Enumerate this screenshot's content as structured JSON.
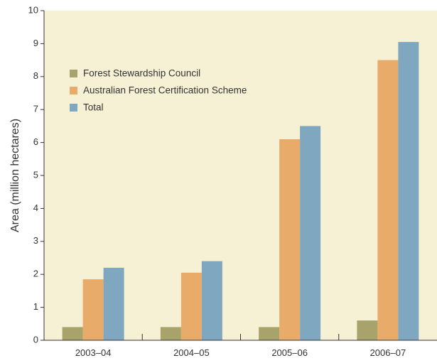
{
  "chart_data": {
    "type": "bar",
    "title": "",
    "xlabel": "",
    "ylabel": "Area (million hectares)",
    "ylim": [
      0,
      10
    ],
    "yticks": [
      0,
      1,
      2,
      3,
      4,
      5,
      6,
      7,
      8,
      9,
      10
    ],
    "categories": [
      "2003–04",
      "2004–05",
      "2005–06",
      "2006–07"
    ],
    "series": [
      {
        "name": "Forest Stewardship Council",
        "values": [
          0.4,
          0.4,
          0.4,
          0.6
        ],
        "color": "#a8a26b"
      },
      {
        "name": "Australian Forest Certification Scheme",
        "values": [
          1.85,
          2.05,
          6.1,
          8.5
        ],
        "color": "#e8ab6a"
      },
      {
        "name": "Total",
        "values": [
          2.2,
          2.4,
          6.5,
          9.05
        ],
        "color": "#7fa8c0"
      }
    ],
    "legend_position": "top-left",
    "background_color": "#f6f1d4",
    "grid": false
  }
}
